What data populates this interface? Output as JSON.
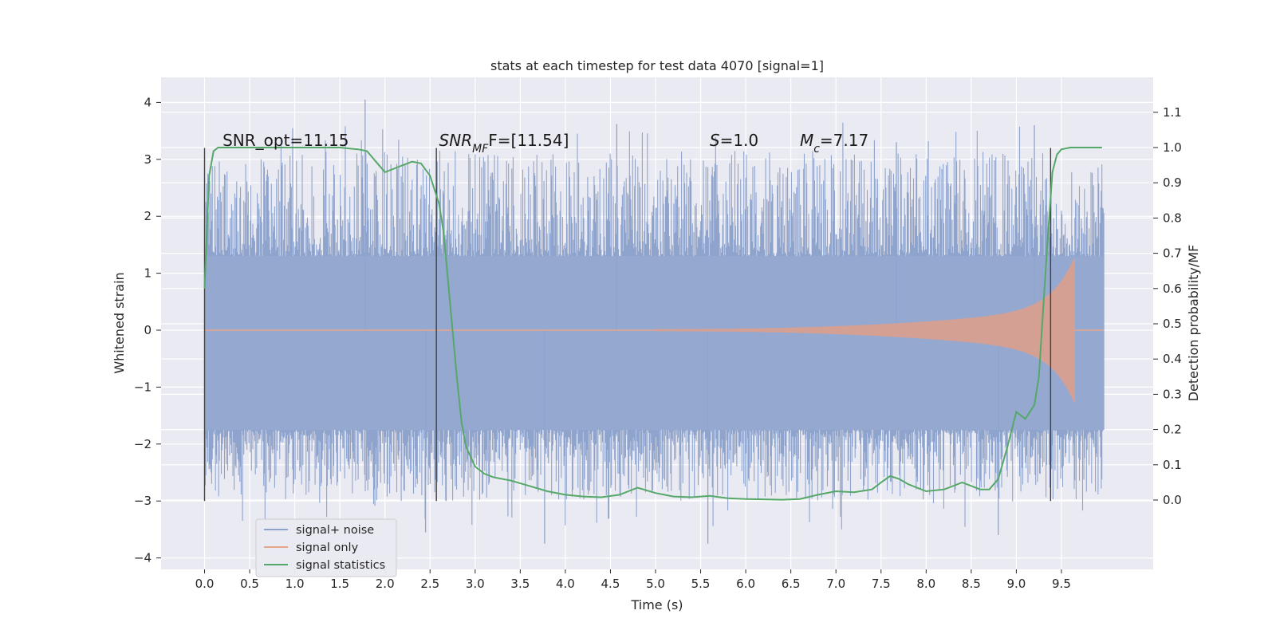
{
  "chart_data": {
    "type": "line",
    "title": "stats at each timestep for test data 4070 [signal=1]",
    "xlabel": "Time (s)",
    "ylabel_left": "Whitened strain",
    "ylabel_right": "Detection probability/MF",
    "xlim": [
      -0.49,
      10.5
    ],
    "ylim_left": [
      -4.2,
      4.4
    ],
    "ylim_right": [
      -0.195,
      1.22
    ],
    "x_ticks": [
      "0.0",
      "0.5",
      "1.0",
      "1.5",
      "2.0",
      "2.5",
      "3.0",
      "3.5",
      "4.0",
      "4.5",
      "5.0",
      "5.5",
      "6.0",
      "6.5",
      "7.0",
      "7.5",
      "8.0",
      "8.5",
      "9.0",
      "9.5"
    ],
    "y_ticks_left": [
      "4",
      "3",
      "2",
      "1",
      "0",
      "−1",
      "−2",
      "−3",
      "−4"
    ],
    "y_ticks_right": [
      "1.1",
      "1.0",
      "0.9",
      "0.8",
      "0.7",
      "0.6",
      "0.5",
      "0.4",
      "0.3",
      "0.2",
      "0.1",
      "0.0"
    ],
    "grid": true,
    "legend_position": "lower-left",
    "series": [
      {
        "name": "signal+ noise",
        "color": "#8fa4cc",
        "axis": "left",
        "description_values": {
          "x_start": 0.0,
          "x_end": 9.97,
          "core_band": [
            -1.75,
            1.3
          ],
          "typical_peak_range": [
            -3.0,
            3.2
          ],
          "max": 4.05,
          "min": -3.75
        }
      },
      {
        "name": "signal only",
        "color": "#e5a58a",
        "axis": "left",
        "description_values": {
          "chirp_start": 5.0,
          "merger_time": 9.65,
          "peak_upper": 1.3,
          "peak_lower": -1.35,
          "end": 9.97
        }
      },
      {
        "name": "signal statistics",
        "color": "#55a868",
        "axis": "right",
        "x": [
          0.0,
          0.05,
          0.1,
          0.15,
          0.2,
          0.3,
          0.5,
          1.0,
          1.5,
          1.7,
          1.8,
          1.9,
          2.0,
          2.1,
          2.2,
          2.3,
          2.4,
          2.5,
          2.55,
          2.6,
          2.65,
          2.7,
          2.75,
          2.8,
          2.85,
          2.9,
          3.0,
          3.1,
          3.2,
          3.4,
          3.6,
          3.8,
          4.0,
          4.2,
          4.4,
          4.6,
          4.8,
          5.0,
          5.2,
          5.4,
          5.6,
          5.8,
          6.0,
          6.2,
          6.4,
          6.6,
          6.8,
          7.0,
          7.2,
          7.4,
          7.5,
          7.6,
          7.7,
          7.8,
          8.0,
          8.2,
          8.4,
          8.5,
          8.6,
          8.7,
          8.8,
          8.9,
          9.0,
          9.1,
          9.2,
          9.25,
          9.3,
          9.35,
          9.4,
          9.45,
          9.5,
          9.6,
          9.7,
          9.8,
          9.9,
          9.95
        ],
        "y": [
          0.6,
          0.92,
          0.99,
          1.0,
          1.0,
          1.0,
          1.0,
          1.0,
          1.0,
          0.995,
          0.99,
          0.96,
          0.93,
          0.94,
          0.95,
          0.96,
          0.955,
          0.92,
          0.88,
          0.84,
          0.76,
          0.62,
          0.48,
          0.34,
          0.22,
          0.15,
          0.095,
          0.075,
          0.065,
          0.055,
          0.04,
          0.025,
          0.015,
          0.01,
          0.008,
          0.015,
          0.035,
          0.02,
          0.01,
          0.008,
          0.012,
          0.005,
          0.003,
          0.002,
          0.001,
          0.003,
          0.015,
          0.025,
          0.022,
          0.03,
          0.05,
          0.068,
          0.06,
          0.045,
          0.025,
          0.03,
          0.05,
          0.04,
          0.03,
          0.03,
          0.06,
          0.15,
          0.25,
          0.23,
          0.27,
          0.35,
          0.55,
          0.75,
          0.93,
          0.98,
          0.995,
          1.0,
          1.0,
          1.0,
          1.0,
          1.0
        ]
      }
    ],
    "vertical_lines": [
      0.0,
      2.57,
      9.38
    ],
    "annotations": [
      {
        "name": "snr-opt",
        "prefix": "SNR_opt=11.15",
        "x": 0.2
      },
      {
        "name": "snr-mf",
        "prefix": "SNR",
        "sub": "MF",
        "suffix": "F=[11.54]",
        "x": 2.6
      },
      {
        "name": "s-value",
        "prefix": "S",
        "suffix": "=1.0",
        "x": 5.6
      },
      {
        "name": "mc-value",
        "prefix": "M",
        "sub": "c",
        "suffix": "=7.17",
        "x": 6.6
      }
    ]
  }
}
